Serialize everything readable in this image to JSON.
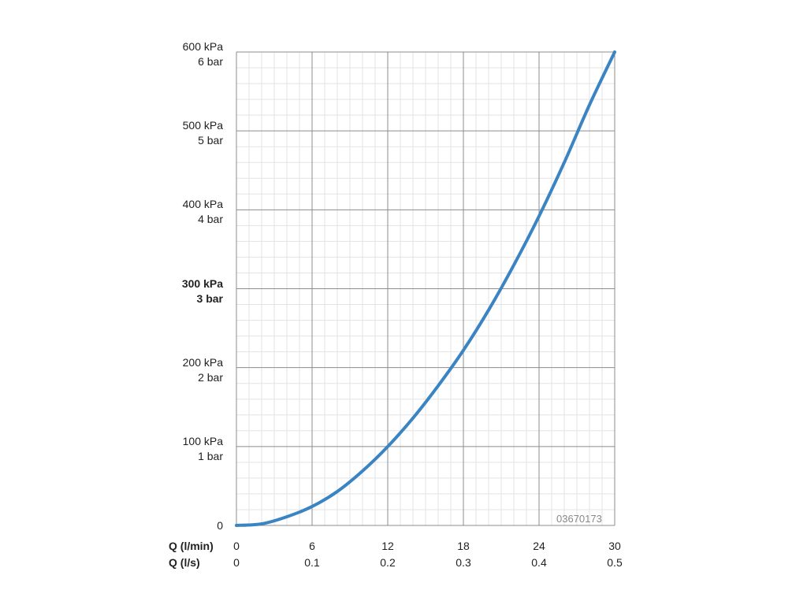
{
  "chart_data": {
    "type": "line",
    "y_ticks": [
      {
        "kpa": "0",
        "bar": "",
        "value": 0,
        "bold": false
      },
      {
        "kpa": "100 kPa",
        "bar": "1 bar",
        "value": 100,
        "bold": false
      },
      {
        "kpa": "200 kPa",
        "bar": "2 bar",
        "value": 200,
        "bold": false
      },
      {
        "kpa": "300 kPa",
        "bar": "3 bar",
        "value": 300,
        "bold": true
      },
      {
        "kpa": "400 kPa",
        "bar": "4 bar",
        "value": 400,
        "bold": false
      },
      {
        "kpa": "500 kPa",
        "bar": "5 bar",
        "value": 500,
        "bold": false
      },
      {
        "kpa": "600 kPa",
        "bar": "6 bar",
        "value": 600,
        "bold": false
      }
    ],
    "x_axis_labels": {
      "lmin": "Q (l/min)",
      "ls": "Q (l/s)"
    },
    "x_ticks": [
      {
        "lmin": "0",
        "ls": "0",
        "value": 0
      },
      {
        "lmin": "6",
        "ls": "0.1",
        "value": 6
      },
      {
        "lmin": "12",
        "ls": "0.2",
        "value": 12
      },
      {
        "lmin": "18",
        "ls": "0.3",
        "value": 18
      },
      {
        "lmin": "24",
        "ls": "0.4",
        "value": 24
      },
      {
        "lmin": "30",
        "ls": "0.5",
        "value": 30
      }
    ],
    "xlim": [
      0,
      30
    ],
    "ylim": [
      0,
      600
    ],
    "grid": true,
    "series": [
      {
        "color": "#3a84c4",
        "x": [
          0,
          2,
          4,
          6,
          8,
          10,
          12,
          14,
          16,
          18,
          20,
          22,
          24,
          26,
          28,
          30
        ],
        "y": [
          0,
          2,
          11,
          24,
          43,
          69,
          100,
          136,
          177,
          222,
          273,
          330,
          392,
          460,
          533,
          600
        ]
      }
    ],
    "code_label": "03670173"
  }
}
